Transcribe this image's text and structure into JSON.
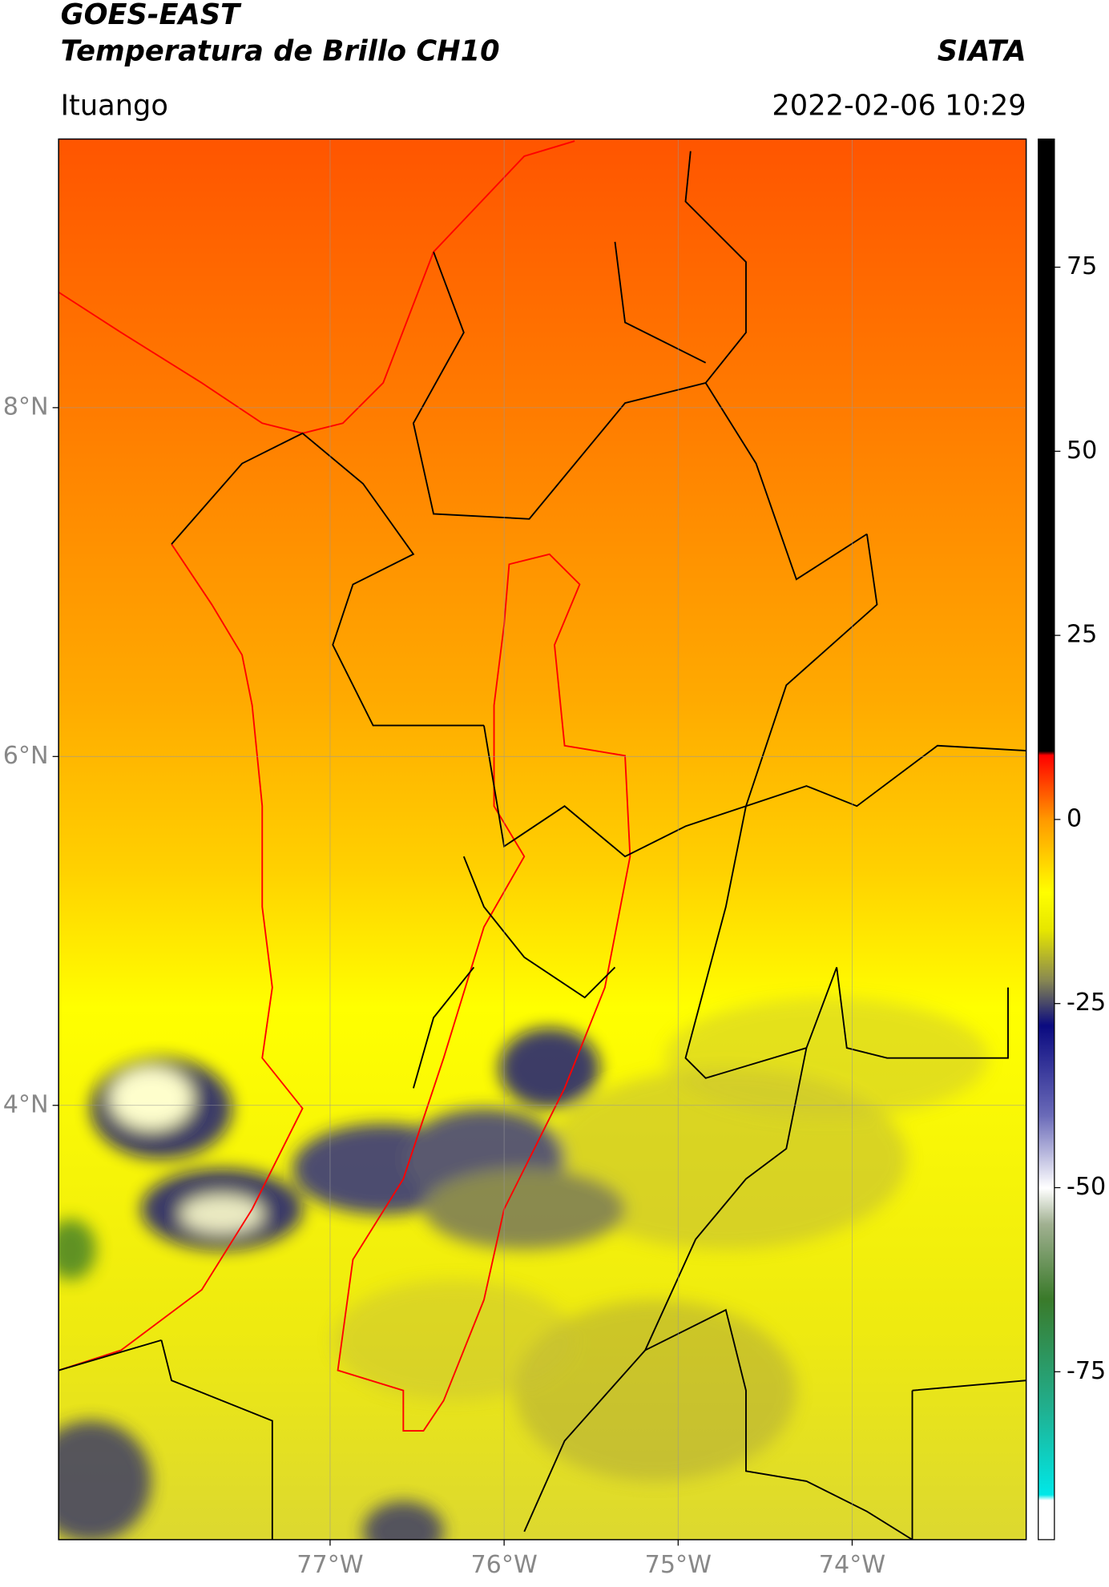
{
  "header": {
    "title": "GOES-EAST",
    "subtitle": "Temperatura de Brillo CH10",
    "source": "SIATA",
    "location": "Ituango",
    "datetime": "2022-02-06 10:29"
  },
  "map": {
    "xlim": [
      -78.56,
      -73.0
    ],
    "ylim": [
      1.51,
      9.54
    ],
    "grid": true,
    "xticks": [
      {
        "value": -77,
        "label": "77°W"
      },
      {
        "value": -76,
        "label": "76°W"
      },
      {
        "value": -75,
        "label": "75°W"
      },
      {
        "value": -74,
        "label": "74°W"
      }
    ],
    "yticks": [
      {
        "value": 8,
        "label": "8°N"
      },
      {
        "value": 6,
        "label": "6°N"
      },
      {
        "value": 4,
        "label": "4°N"
      }
    ]
  },
  "colorbar": {
    "lim": [
      -97.8,
      92.4
    ],
    "ticks": [
      75,
      50,
      25,
      0,
      -25,
      -50,
      -75
    ]
  }
}
